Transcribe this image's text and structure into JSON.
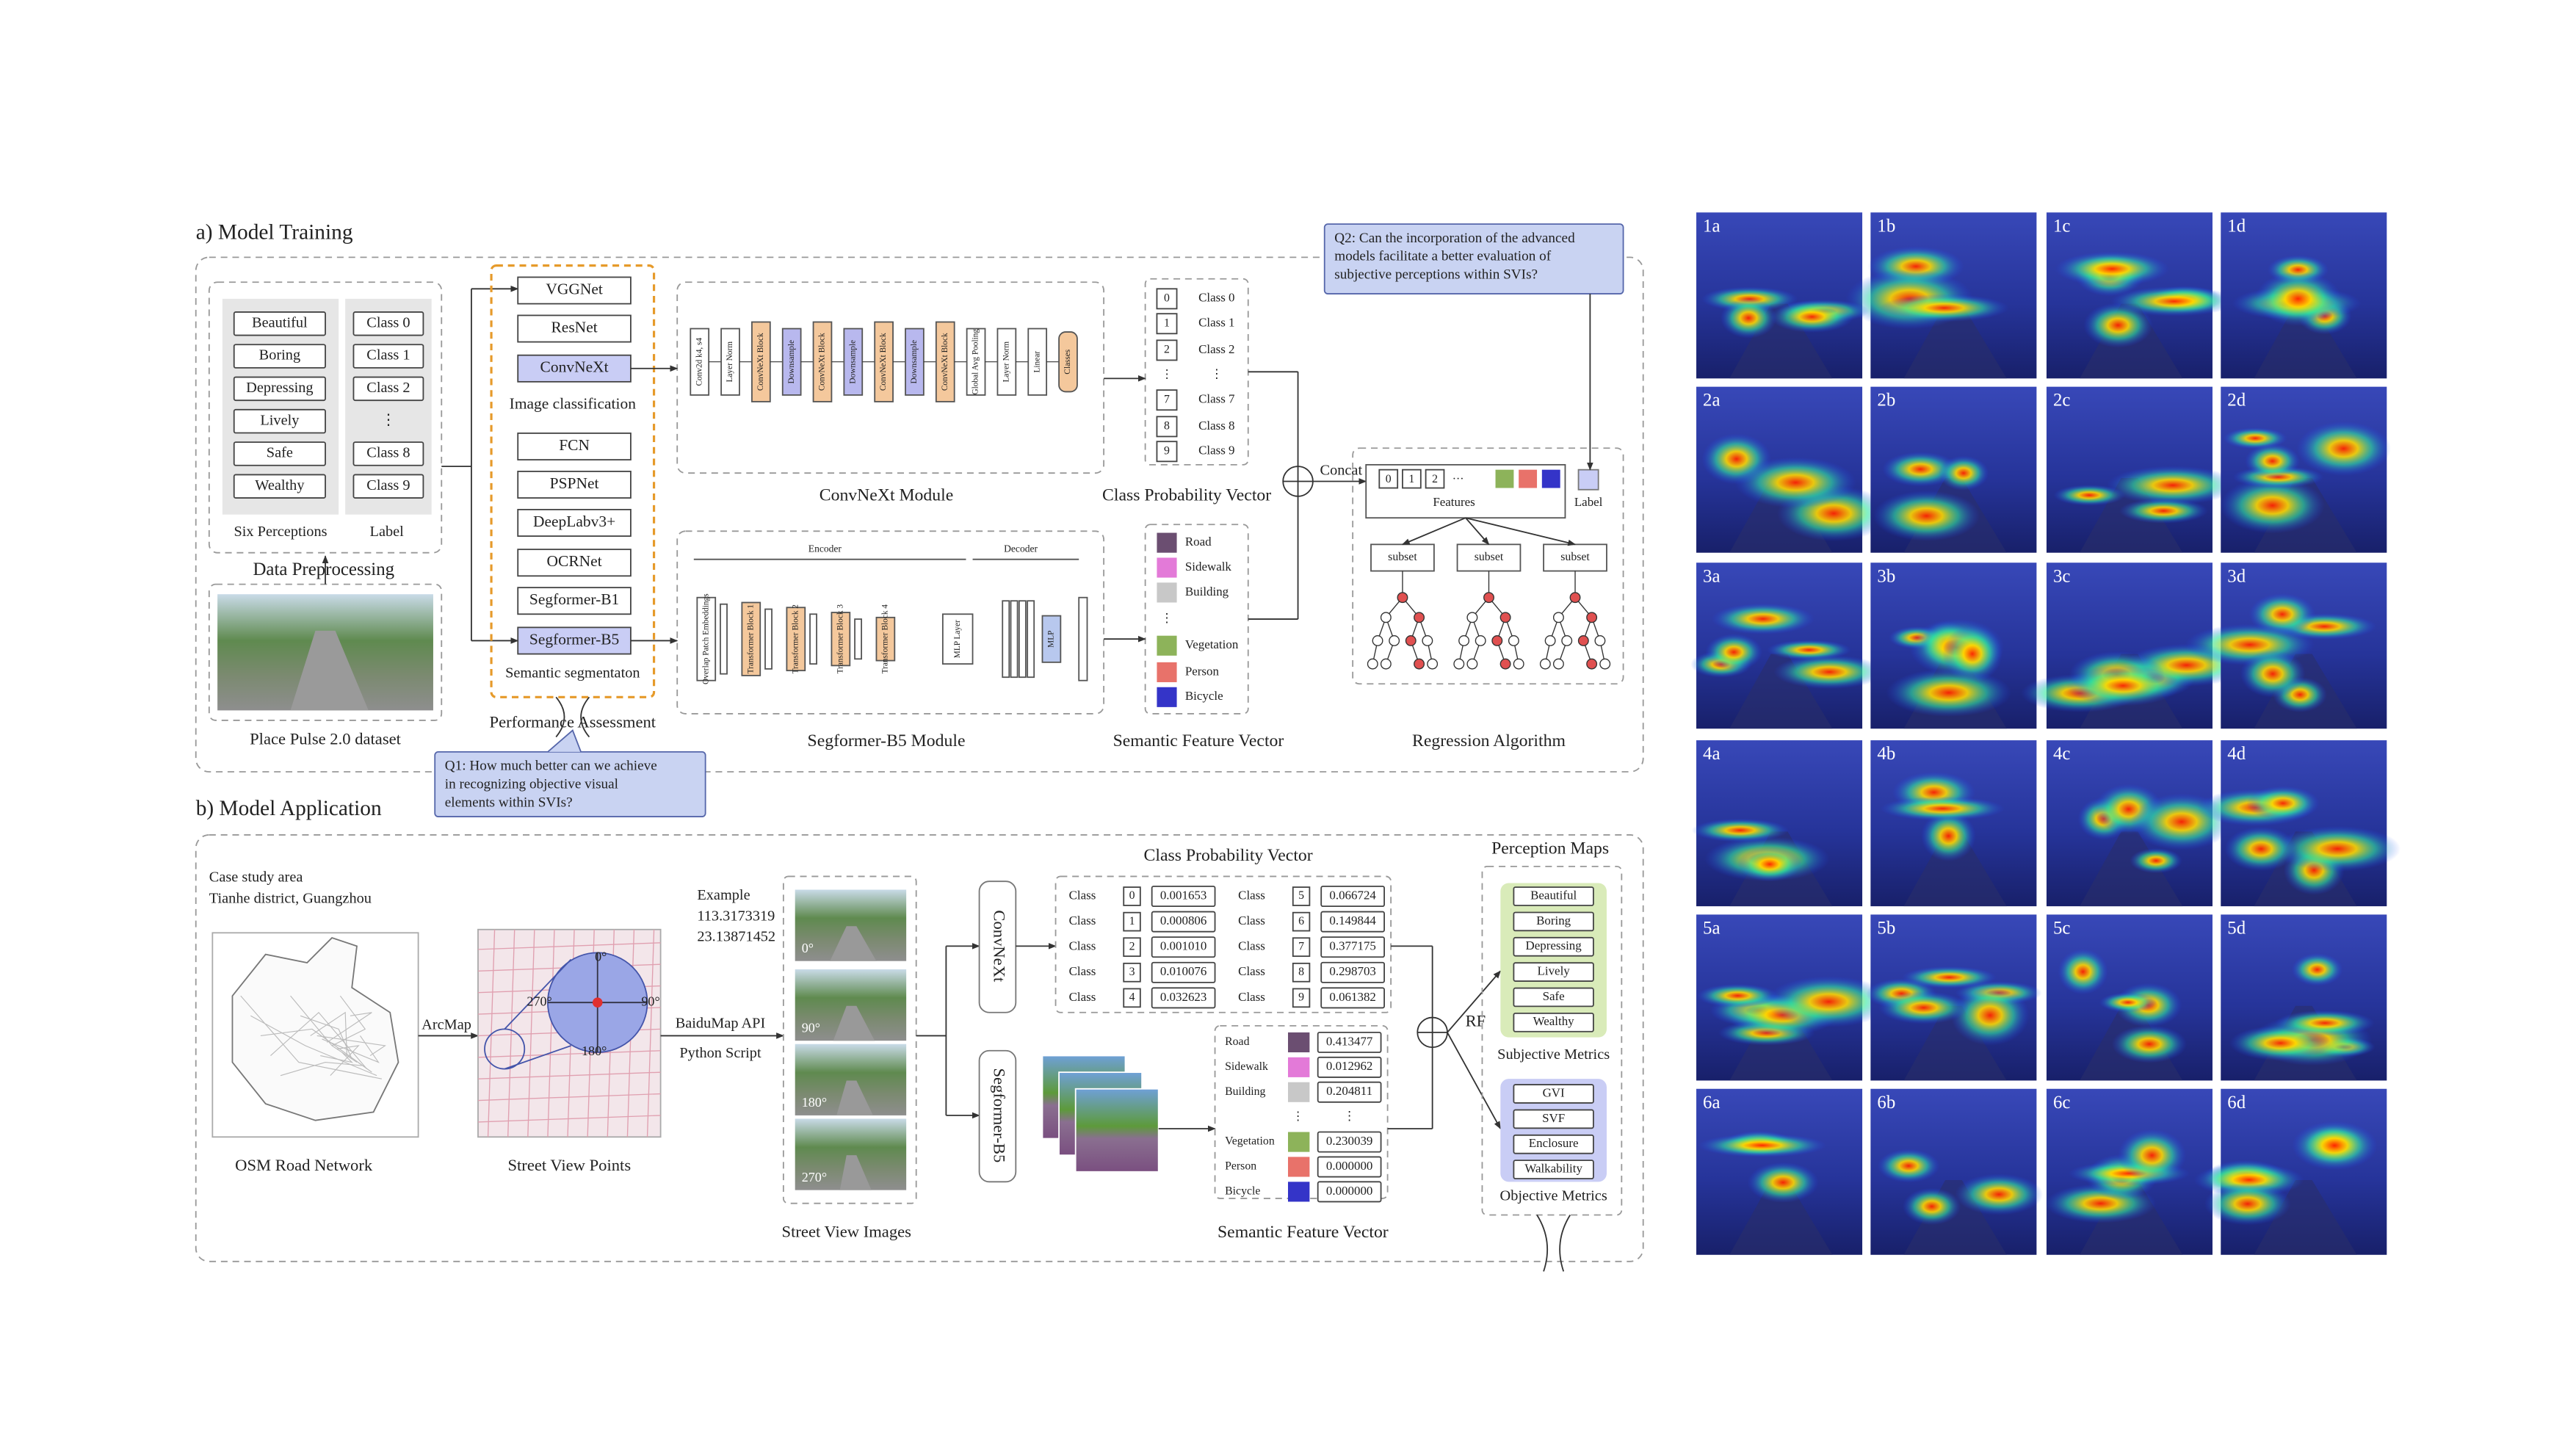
{
  "training": {
    "title": "a) Model Training",
    "perceptions": [
      "Beautiful",
      "Boring",
      "Depressing",
      "Lively",
      "Safe",
      "Wealthy"
    ],
    "perceptions_caption": "Six Perceptions",
    "labels": [
      "Class 0",
      "Class 1",
      "Class 2",
      "⋮",
      "Class 8",
      "Class 9"
    ],
    "labels_caption": "Label",
    "preprocessing_caption": "Data Preprocessing",
    "dataset_caption": "Place Pulse 2.0 dataset",
    "classification_models": [
      "VGGNet",
      "ResNet",
      "ConvNeXt"
    ],
    "classification_caption": "Image classification",
    "segmentation_models": [
      "FCN",
      "PSPNet",
      "DeepLabv3+",
      "OCRNet",
      "Segformer-B1",
      "Segformer-B5"
    ],
    "segmentation_caption": "Semantic segmentaton",
    "assessment_caption": "Performance Assessment",
    "q1": [
      "Q1: How much better can we achieve",
      "in recognizing objective visual",
      "elements within SVIs?"
    ],
    "q2": [
      "Q2: Can the incorporation of the advanced",
      "models facilitate a better evaluation of",
      "subjective perceptions within SVIs?"
    ],
    "convnext_module": {
      "caption": "ConvNeXt Module",
      "blocks": [
        "Conv2d k4, s4",
        "Layer Norm",
        "ConvNeXt Block",
        "Downsample",
        "ConvNeXt Block",
        "Downsample",
        "ConvNeXt Block",
        "Downsample",
        "ConvNeXt Block",
        "Global Avg Pooling",
        "Layer Norm",
        "Linear",
        "Classes"
      ]
    },
    "segformer_module": {
      "caption": "Segformer-B5 Module",
      "encoder": "Encoder",
      "decoder": "Decoder",
      "blocks": [
        "Overlap Patch Embeddings",
        "Transformer Block 1",
        "Transformer Block 2",
        "Transformer Block 3",
        "Transformer Block 4",
        "MLP Layer",
        "MLP"
      ]
    },
    "class_vector": {
      "caption": "Class Probability Vector",
      "indices": [
        "0",
        "1",
        "2",
        "⋮",
        "7",
        "8",
        "9"
      ],
      "labels": [
        "Class 0",
        "Class 1",
        "Class 2",
        "⋮",
        "Class 7",
        "Class 8",
        "Class 9"
      ]
    },
    "semantic_vector": {
      "caption": "Semantic Feature Vector",
      "classes": [
        "Road",
        "Sidewalk",
        "Building",
        "⋮",
        "Vegetation",
        "Person",
        "Bicycle"
      ],
      "colors": [
        "#6b4e71",
        "#e37ad8",
        "#c8c8c8",
        null,
        "#8db35a",
        "#e8726a",
        "#3434c8"
      ]
    },
    "concat": "Concat",
    "regression": {
      "caption": "Regression Algorithm",
      "feature_cells": [
        "0",
        "1",
        "2",
        "···"
      ],
      "features": "Features",
      "label": "Label",
      "subsets": [
        "subset",
        "subset",
        "subset"
      ]
    }
  },
  "application": {
    "title": "b) Model Application",
    "study_area": [
      "Case study area",
      "Tianhe district, Guangzhou"
    ],
    "osm_caption": "OSM Road Network",
    "arcmap": "ArcMap",
    "points_caption": "Street View Points",
    "point_angles": [
      "0°",
      "90°",
      "180°",
      "270°"
    ],
    "example": [
      "Example",
      "113.3173319",
      "23.13871452"
    ],
    "api": [
      "BaiduMap API",
      "Python Script"
    ],
    "image_angles": [
      "0°",
      "90°",
      "180°",
      "270°"
    ],
    "images_caption": "Street View Images",
    "convnext": "ConvNeXt",
    "segformer": "Segformer-B5",
    "class_vector": {
      "title": "Class Probability Vector",
      "rows": [
        {
          "label": "Class",
          "index": "0",
          "value": "0.001653"
        },
        {
          "label": "Class",
          "index": "1",
          "value": "0.000806"
        },
        {
          "label": "Class",
          "index": "2",
          "value": "0.001010"
        },
        {
          "label": "Class",
          "index": "3",
          "value": "0.010076"
        },
        {
          "label": "Class",
          "index": "4",
          "value": "0.032623"
        },
        {
          "label": "Class",
          "index": "5",
          "value": "0.066724"
        },
        {
          "label": "Class",
          "index": "6",
          "value": "0.149844"
        },
        {
          "label": "Class",
          "index": "7",
          "value": "0.377175"
        },
        {
          "label": "Class",
          "index": "8",
          "value": "0.298703"
        },
        {
          "label": "Class",
          "index": "9",
          "value": "0.061382"
        }
      ]
    },
    "semantic_vector": {
      "caption": "Semantic Feature Vector",
      "rows": [
        {
          "name": "Road",
          "value": "0.413477"
        },
        {
          "name": "Sidewalk",
          "value": "0.012962"
        },
        {
          "name": "Building",
          "value": "0.204811"
        },
        {
          "name": "⋮",
          "value": "⋮"
        },
        {
          "name": "Vegetation",
          "value": "0.230039"
        },
        {
          "name": "Person",
          "value": "0.000000"
        },
        {
          "name": "Bicycle",
          "value": "0.000000"
        }
      ]
    },
    "rf": "RF",
    "maps_title": "Perception Maps",
    "subjective": [
      "Beautiful",
      "Boring",
      "Depressing",
      "Lively",
      "Safe",
      "Wealthy"
    ],
    "subjective_caption": "Subjective Metrics",
    "objective": [
      "GVI",
      "SVF",
      "Enclosure",
      "Walkability"
    ],
    "objective_caption": "Objective Metrics"
  },
  "heatmaps": {
    "labels": [
      "1a",
      "1b",
      "1c",
      "1d",
      "2a",
      "2b",
      "2c",
      "2d",
      "3a",
      "3b",
      "3c",
      "3d",
      "4a",
      "4b",
      "4c",
      "4d",
      "5a",
      "5b",
      "5c",
      "5d",
      "6a",
      "6b",
      "6c",
      "6d"
    ]
  }
}
